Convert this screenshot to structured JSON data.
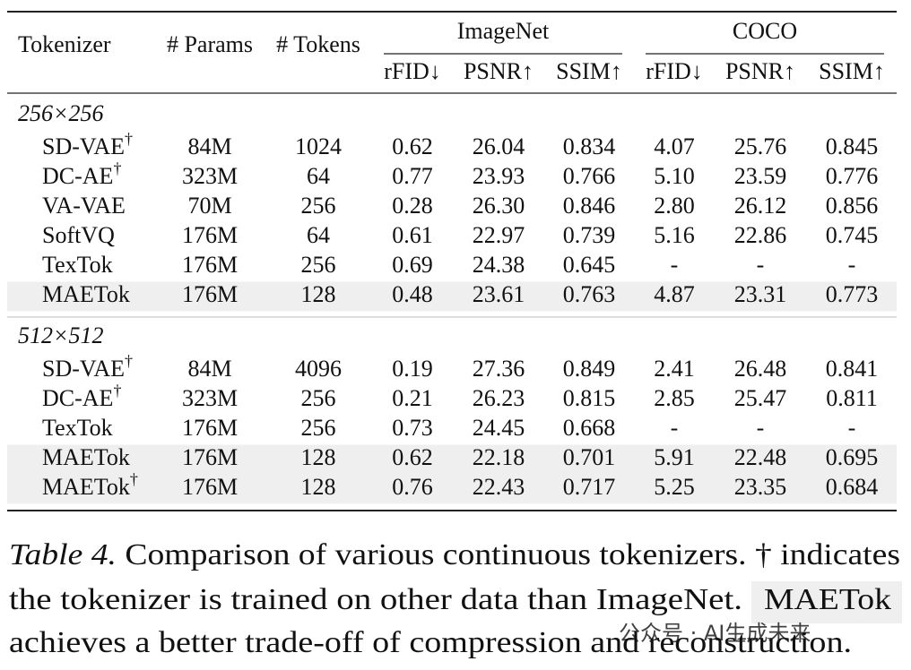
{
  "table": {
    "columns": [
      "Tokenizer",
      "# Params",
      "# Tokens"
    ],
    "groups": [
      {
        "name": "ImageNet",
        "metrics": [
          "rFID↓",
          "PSNR↑",
          "SSIM↑"
        ]
      },
      {
        "name": "COCO",
        "metrics": [
          "rFID↓",
          "PSNR↑",
          "SSIM↑"
        ]
      }
    ],
    "sections": [
      {
        "title": "256×256",
        "rows": [
          {
            "name": "SD-VAE",
            "mark": "†",
            "params": "84M",
            "tokens": "1024",
            "values": [
              "0.62",
              "26.04",
              "0.834",
              "4.07",
              "25.76",
              "0.845"
            ]
          },
          {
            "name": "DC-AE",
            "mark": "†",
            "params": "323M",
            "tokens": "64",
            "values": [
              "0.77",
              "23.93",
              "0.766",
              "5.10",
              "23.59",
              "0.776"
            ]
          },
          {
            "name": "VA-VAE",
            "params": "70M",
            "tokens": "256",
            "values": [
              "0.28",
              "26.30",
              "0.846",
              "2.80",
              "26.12",
              "0.856"
            ]
          },
          {
            "name": "SoftVQ",
            "params": "176M",
            "tokens": "64",
            "values": [
              "0.61",
              "22.97",
              "0.739",
              "5.16",
              "22.86",
              "0.745"
            ]
          },
          {
            "name": "TexTok",
            "params": "176M",
            "tokens": "256",
            "values": [
              "0.69",
              "24.38",
              "0.645",
              "-",
              "-",
              "-"
            ]
          },
          {
            "name": "MAETok",
            "params": "176M",
            "tokens": "128",
            "values": [
              "0.48",
              "23.61",
              "0.763",
              "4.87",
              "23.31",
              "0.773"
            ],
            "highlight": true
          }
        ]
      },
      {
        "title": "512×512",
        "rows": [
          {
            "name": "SD-VAE",
            "mark": "†",
            "params": "84M",
            "tokens": "4096",
            "values": [
              "0.19",
              "27.36",
              "0.849",
              "2.41",
              "26.48",
              "0.841"
            ]
          },
          {
            "name": "DC-AE",
            "mark": "†",
            "params": "323M",
            "tokens": "256",
            "values": [
              "0.21",
              "26.23",
              "0.815",
              "2.85",
              "25.47",
              "0.811"
            ]
          },
          {
            "name": "TexTok",
            "params": "176M",
            "tokens": "256",
            "values": [
              "0.73",
              "24.45",
              "0.668",
              "-",
              "-",
              "-"
            ]
          },
          {
            "name": "MAETok",
            "params": "176M",
            "tokens": "128",
            "values": [
              "0.62",
              "22.18",
              "0.701",
              "5.91",
              "22.48",
              "0.695"
            ],
            "highlight": true
          },
          {
            "name": "MAETok",
            "mark": "†",
            "params": "176M",
            "tokens": "128",
            "values": [
              "0.76",
              "22.43",
              "0.717",
              "5.25",
              "23.35",
              "0.684"
            ],
            "highlight": true
          }
        ]
      }
    ]
  },
  "caption": {
    "label": "Table 4.",
    "line1": " Comparison of various continuous tokenizers. † indicates",
    "line2": "the tokenizer is trained on other data than ImageNet.",
    "highlight": "MAETok",
    "line3": "achieves a better trade-off of compression and reconstruction."
  },
  "watermark": "公众号 · AI生成未来"
}
